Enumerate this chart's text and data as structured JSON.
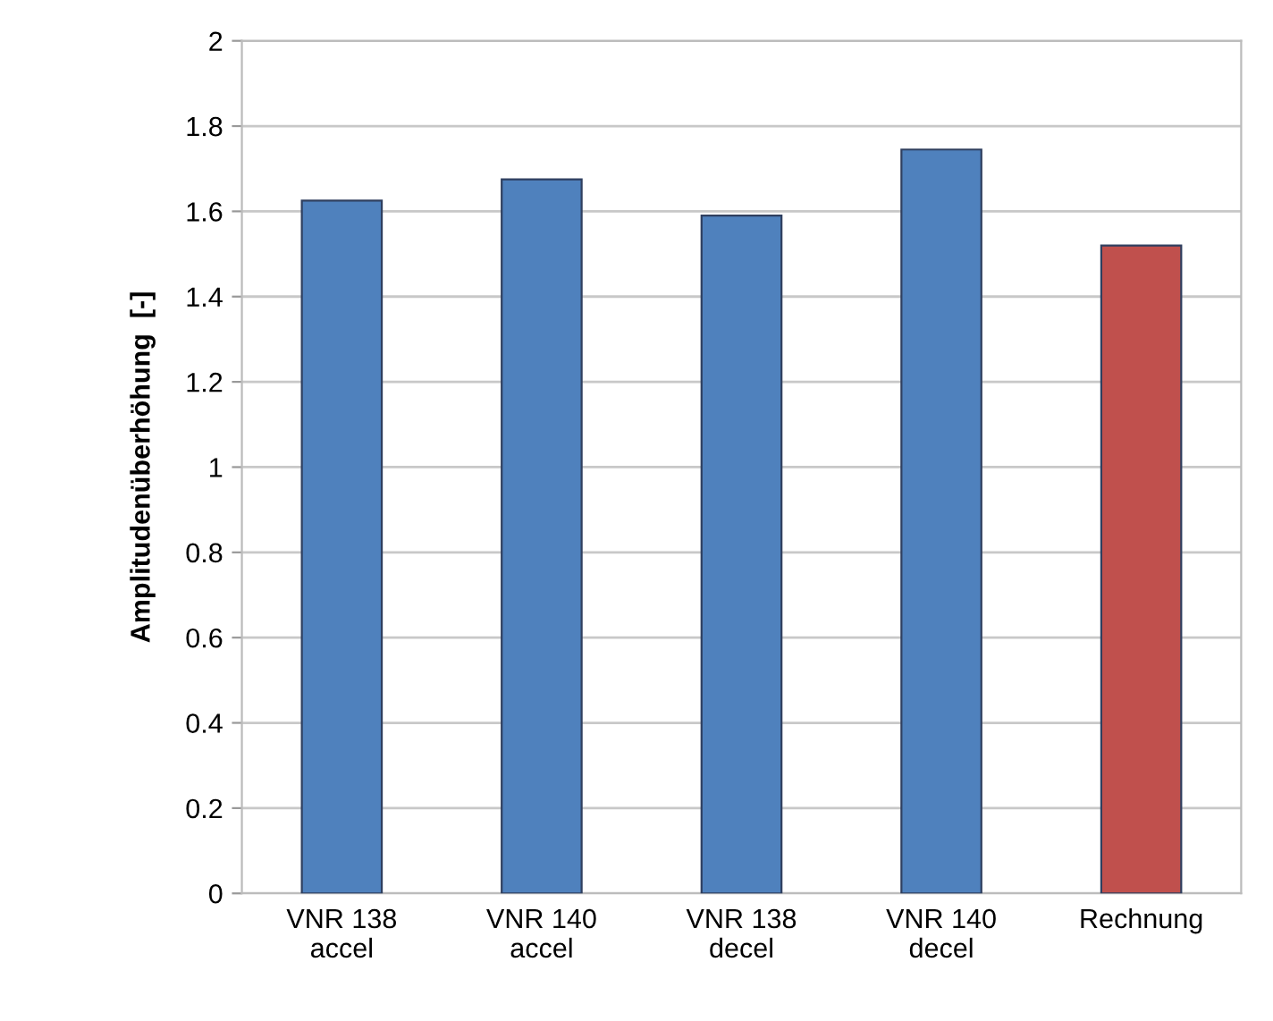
{
  "chart_data": {
    "type": "bar",
    "ylabel": "Amplitudenüberhöhung  [-]",
    "categories": [
      "VNR 138\naccel",
      "VNR 140\naccel",
      "VNR 138\ndecel",
      "VNR 140\ndecel",
      "Rechnung"
    ],
    "values": [
      1.625,
      1.675,
      1.59,
      1.745,
      1.52
    ],
    "colors": [
      "#4f81bd",
      "#4f81bd",
      "#4f81bd",
      "#4f81bd",
      "#c0504d"
    ],
    "ylim": [
      0,
      2
    ],
    "yticks": [
      0,
      0.2,
      0.4,
      0.6,
      0.8,
      1,
      1.2,
      1.4,
      1.6,
      1.8,
      2
    ],
    "grid": "y",
    "legend": false
  }
}
